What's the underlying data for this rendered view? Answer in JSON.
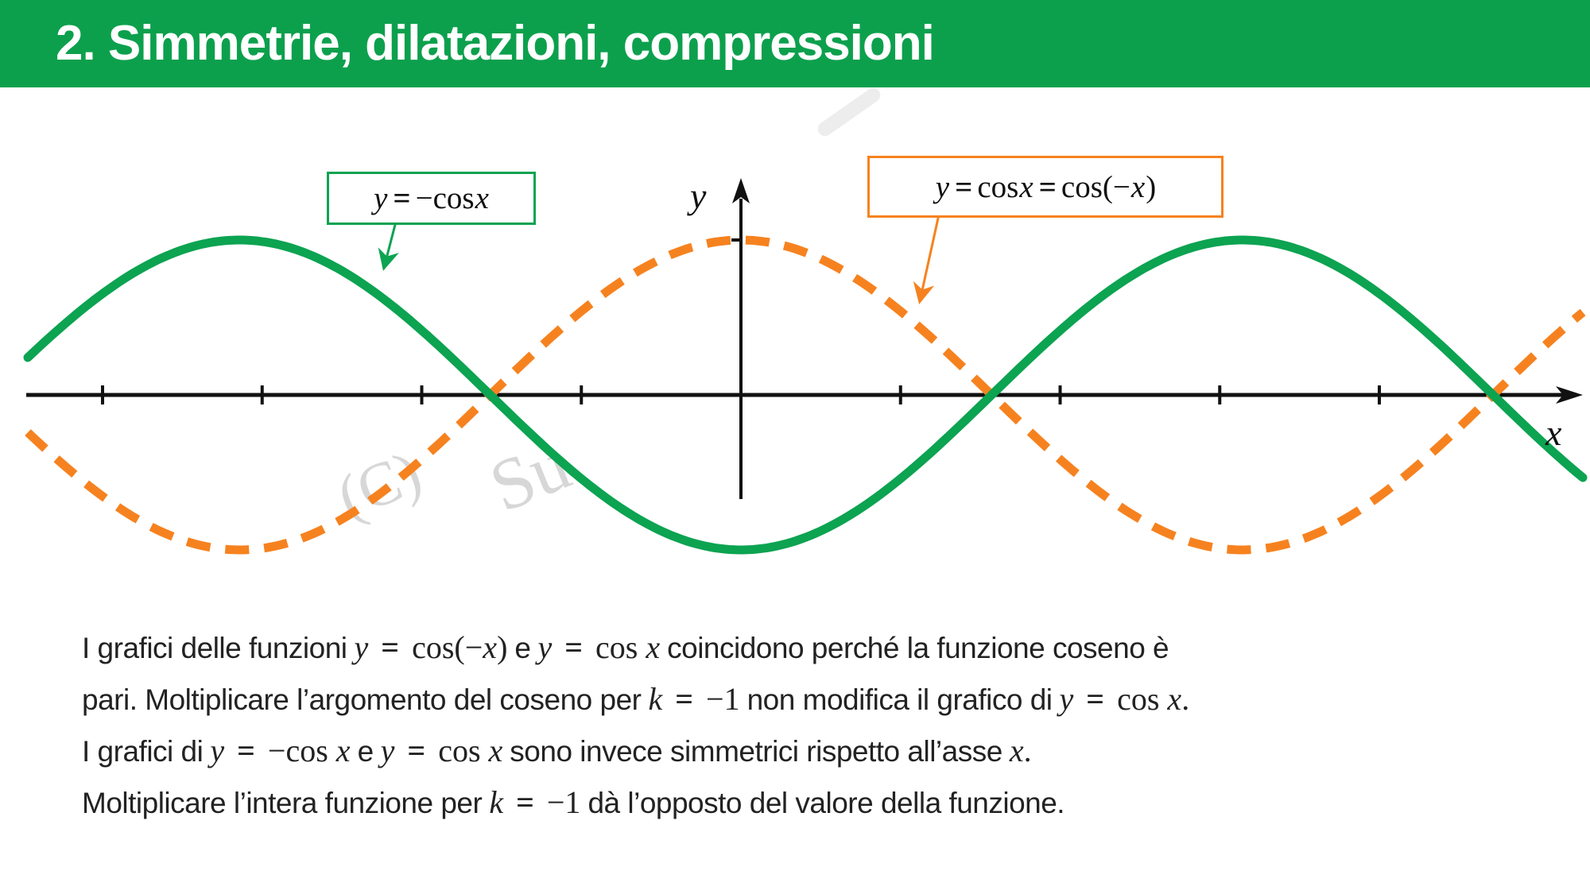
{
  "header": {
    "title": "2. Simmetrie, dilatazioni, compressioni",
    "bg_color": "#0CA04D",
    "text_color": "#ffffff"
  },
  "chart_data": {
    "type": "line",
    "title": "",
    "xlabel": "x",
    "ylabel": "y",
    "grid": false,
    "amplitude": 1,
    "x_domain_rad": [
      -4.47,
      5.29
    ],
    "x_ticks_rad": [
      -4,
      -3,
      -2,
      -1,
      1,
      2,
      3,
      4
    ],
    "y_ticks": [
      1
    ],
    "axis_color": "#111111",
    "series": [
      {
        "name": "y = −cos x",
        "formula": "-cos",
        "color": "#0CA351",
        "line_style": "solid",
        "label_box": "y = −cos x"
      },
      {
        "name": "y = cos x = cos(−x)",
        "formula": "cos",
        "color": "#F6821F",
        "line_style": "dashed",
        "label_box": "y = cos x = cos(−x)"
      }
    ]
  },
  "watermarks": {
    "w1": "(C)",
    "w2": "Su"
  },
  "paragraph": {
    "lines": [
      [
        {
          "t": "text",
          "v": "I grafici delle funzioni"
        },
        {
          "t": "math",
          "v": "y = cos(−x)"
        },
        {
          "t": "text",
          "v": "e"
        },
        {
          "t": "math",
          "v": "y = cos x"
        },
        {
          "t": "text",
          "v": "coincidono perché la funzione coseno è"
        }
      ],
      [
        {
          "t": "text",
          "v": "pari. Moltiplicare l’argomento del coseno per"
        },
        {
          "t": "math",
          "v": "k = −1"
        },
        {
          "t": "text",
          "v": "non modifica il grafico di"
        },
        {
          "t": "math",
          "v": "y = cos x."
        }
      ],
      [
        {
          "t": "text",
          "v": "I grafici di"
        },
        {
          "t": "math",
          "v": "y = −cos x"
        },
        {
          "t": "text",
          "v": "e"
        },
        {
          "t": "math",
          "v": "y = cos x"
        },
        {
          "t": "text",
          "v": "sono invece simmetrici rispetto all’asse"
        },
        {
          "t": "math",
          "v": "x."
        }
      ],
      [
        {
          "t": "text",
          "v": "Moltiplicare l’intera funzione per"
        },
        {
          "t": "math",
          "v": "k = −1"
        },
        {
          "t": "text",
          "v": "dà l’opposto del valore della funzione."
        }
      ]
    ]
  }
}
